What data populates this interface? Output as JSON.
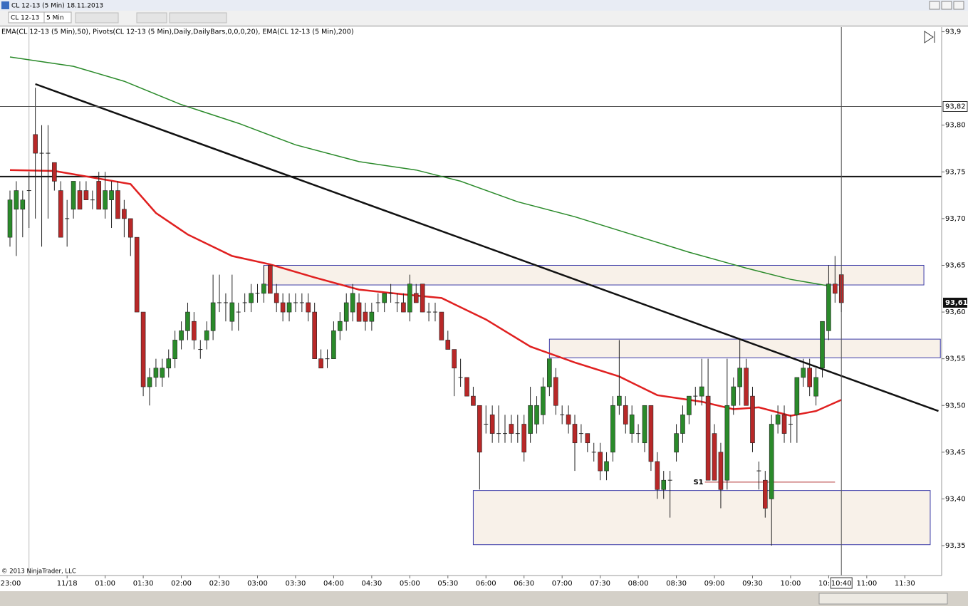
{
  "window": {
    "title": "CL 12-13 (5 Min)  18.11.2013",
    "instrument": "CL 12-13",
    "period": "5 Min"
  },
  "chart_data": {
    "type": "candlestick",
    "indicator_label": "EMA(CL 12-13 (5 Min),50),  Pivots(CL 12-13 (5 Min),Daily,DailyBars,0,0,0,20),  EMA(CL 12-13 (5 Min),200)",
    "copyright": "© 2013 NinjaTrader, LLC",
    "up_color": "#2a8a2a",
    "down_color": "#b82828",
    "xlim": [
      -1.57,
      146.8
    ],
    "ylim": [
      93.318,
      93.905
    ],
    "yticks": [
      {
        "value": 93.35,
        "label": "93,35"
      },
      {
        "value": 93.4,
        "label": "93,40"
      },
      {
        "value": 93.45,
        "label": "93,45"
      },
      {
        "value": 93.5,
        "label": "93,50"
      },
      {
        "value": 93.55,
        "label": "93,55"
      },
      {
        "value": 93.6,
        "label": "93,60"
      },
      {
        "value": 93.65,
        "label": "93,65"
      },
      {
        "value": 93.7,
        "label": "93,70"
      },
      {
        "value": 93.75,
        "label": "93,75"
      },
      {
        "value": 93.8,
        "label": "93,80"
      },
      {
        "value": 93.9,
        "label": "93,9"
      }
    ],
    "xticks": [
      {
        "value": -9,
        "label": "23:00"
      },
      {
        "value": 9,
        "label": "11/18"
      },
      {
        "value": 15,
        "label": "01:00"
      },
      {
        "value": 21,
        "label": "01:30"
      },
      {
        "value": 27,
        "label": "02:00"
      },
      {
        "value": 33,
        "label": "02:30"
      },
      {
        "value": 39,
        "label": "03:00"
      },
      {
        "value": 45,
        "label": "03:30"
      },
      {
        "value": 51,
        "label": "04:00"
      },
      {
        "value": 57,
        "label": "04:30"
      },
      {
        "value": 63,
        "label": "05:00"
      },
      {
        "value": 69,
        "label": "05:30"
      },
      {
        "value": 75,
        "label": "06:00"
      },
      {
        "value": 81,
        "label": "06:30"
      },
      {
        "value": 87,
        "label": "07:00"
      },
      {
        "value": 93,
        "label": "07:30"
      },
      {
        "value": 99,
        "label": "08:00"
      },
      {
        "value": 105,
        "label": "08:30"
      },
      {
        "value": 111,
        "label": "09:00"
      },
      {
        "value": 117,
        "label": "09:30"
      },
      {
        "value": 123,
        "label": "10:00"
      },
      {
        "value": 129,
        "label": "10:30"
      },
      {
        "value": 135,
        "label": "11:00"
      },
      {
        "value": 141,
        "label": "11:30"
      }
    ],
    "session_break": 3,
    "ohlc": [
      [
        93.68,
        93.73,
        93.67,
        93.72
      ],
      [
        93.71,
        93.74,
        93.66,
        93.73
      ],
      [
        93.71,
        93.73,
        93.68,
        93.72
      ],
      [
        93.73,
        93.75,
        93.69,
        93.73
      ],
      [
        93.79,
        93.84,
        93.7,
        93.77
      ],
      [
        93.77,
        93.8,
        93.67,
        93.77
      ],
      [
        93.77,
        93.8,
        93.7,
        93.77
      ],
      [
        93.76,
        93.76,
        93.73,
        93.74
      ],
      [
        93.73,
        93.74,
        93.68,
        93.68
      ],
      [
        93.7,
        93.72,
        93.67,
        93.7
      ],
      [
        93.71,
        93.74,
        93.7,
        93.74
      ],
      [
        93.73,
        93.74,
        93.71,
        93.71
      ],
      [
        93.73,
        93.74,
        93.72,
        93.72
      ],
      [
        93.72,
        93.73,
        93.71,
        93.72
      ],
      [
        93.74,
        93.75,
        93.71,
        93.71
      ],
      [
        93.71,
        93.75,
        93.7,
        93.73
      ],
      [
        93.72,
        93.74,
        93.69,
        93.73
      ],
      [
        93.73,
        93.74,
        93.7,
        93.7
      ],
      [
        93.71,
        93.72,
        93.68,
        93.7
      ],
      [
        93.7,
        93.7,
        93.66,
        93.68
      ],
      [
        93.68,
        93.68,
        93.6,
        93.6
      ],
      [
        93.6,
        93.6,
        93.51,
        93.52
      ],
      [
        93.52,
        93.54,
        93.5,
        93.53
      ],
      [
        93.53,
        93.55,
        93.52,
        93.54
      ],
      [
        93.53,
        93.55,
        93.52,
        93.54
      ],
      [
        93.54,
        93.56,
        93.53,
        93.55
      ],
      [
        93.55,
        93.58,
        93.54,
        93.57
      ],
      [
        93.57,
        93.59,
        93.56,
        93.58
      ],
      [
        93.58,
        93.61,
        93.57,
        93.6
      ],
      [
        93.59,
        93.6,
        93.56,
        93.57
      ],
      [
        93.56,
        93.57,
        93.55,
        93.56
      ],
      [
        93.57,
        93.59,
        93.56,
        93.58
      ],
      [
        93.58,
        93.64,
        93.57,
        93.61
      ],
      [
        93.61,
        93.64,
        93.6,
        93.61
      ],
      [
        93.61,
        93.62,
        93.59,
        93.61
      ],
      [
        93.59,
        93.64,
        93.58,
        93.61
      ],
      [
        93.6,
        93.61,
        93.58,
        93.6
      ],
      [
        93.61,
        93.62,
        93.6,
        93.61
      ],
      [
        93.61,
        93.63,
        93.6,
        93.62
      ],
      [
        93.62,
        93.63,
        93.61,
        93.62
      ],
      [
        93.62,
        93.65,
        93.61,
        93.63
      ],
      [
        93.65,
        93.65,
        93.62,
        93.62
      ],
      [
        93.62,
        93.63,
        93.6,
        93.61
      ],
      [
        93.61,
        93.62,
        93.59,
        93.6
      ],
      [
        93.6,
        93.62,
        93.59,
        93.61
      ],
      [
        93.61,
        93.62,
        93.6,
        93.61
      ],
      [
        93.61,
        93.62,
        93.6,
        93.61
      ],
      [
        93.61,
        93.62,
        93.59,
        93.6
      ],
      [
        93.6,
        93.61,
        93.55,
        93.55
      ],
      [
        93.55,
        93.56,
        93.54,
        93.54
      ],
      [
        93.55,
        93.56,
        93.54,
        93.55
      ],
      [
        93.55,
        93.59,
        93.55,
        93.58
      ],
      [
        93.58,
        93.6,
        93.57,
        93.59
      ],
      [
        93.59,
        93.62,
        93.58,
        93.61
      ],
      [
        93.6,
        93.63,
        93.59,
        93.62
      ],
      [
        93.61,
        93.62,
        93.59,
        93.59
      ],
      [
        93.6,
        93.61,
        93.58,
        93.59
      ],
      [
        93.59,
        93.61,
        93.58,
        93.6
      ],
      [
        93.61,
        93.62,
        93.6,
        93.61
      ],
      [
        93.61,
        93.62,
        93.6,
        93.62
      ],
      [
        93.62,
        93.63,
        93.61,
        93.62
      ],
      [
        93.61,
        93.62,
        93.6,
        93.61
      ],
      [
        93.61,
        93.62,
        93.6,
        93.6
      ],
      [
        93.6,
        93.64,
        93.59,
        93.63
      ],
      [
        93.62,
        93.63,
        93.61,
        93.61
      ],
      [
        93.63,
        93.63,
        93.6,
        93.6
      ],
      [
        93.6,
        93.61,
        93.59,
        93.6
      ],
      [
        93.6,
        93.61,
        93.59,
        93.6
      ],
      [
        93.6,
        93.6,
        93.57,
        93.57
      ],
      [
        93.57,
        93.58,
        93.56,
        93.56
      ],
      [
        93.56,
        93.56,
        93.51,
        93.54
      ],
      [
        93.53,
        93.55,
        93.52,
        93.53
      ],
      [
        93.53,
        93.53,
        93.51,
        93.51
      ],
      [
        93.51,
        93.52,
        93.5,
        93.5
      ],
      [
        93.5,
        93.5,
        93.41,
        93.45
      ],
      [
        93.48,
        93.5,
        93.47,
        93.48
      ],
      [
        93.49,
        93.5,
        93.46,
        93.47
      ],
      [
        93.47,
        93.5,
        93.46,
        93.47
      ],
      [
        93.47,
        93.49,
        93.46,
        93.47
      ],
      [
        93.48,
        93.49,
        93.46,
        93.47
      ],
      [
        93.47,
        93.49,
        93.46,
        93.47
      ],
      [
        93.48,
        93.49,
        93.44,
        93.45
      ],
      [
        93.47,
        93.52,
        93.46,
        93.5
      ],
      [
        93.48,
        93.51,
        93.47,
        93.5
      ],
      [
        93.49,
        93.53,
        93.48,
        93.52
      ],
      [
        93.52,
        93.55,
        93.51,
        93.55
      ],
      [
        93.53,
        93.54,
        93.49,
        93.5
      ],
      [
        93.49,
        93.5,
        93.48,
        93.49
      ],
      [
        93.49,
        93.5,
        93.47,
        93.48
      ],
      [
        93.48,
        93.49,
        93.43,
        93.46
      ],
      [
        93.47,
        93.48,
        93.46,
        93.47
      ],
      [
        93.47,
        93.47,
        93.45,
        93.46
      ],
      [
        93.45,
        93.46,
        93.44,
        93.45
      ],
      [
        93.45,
        93.46,
        93.42,
        93.43
      ],
      [
        93.43,
        93.45,
        93.42,
        93.44
      ],
      [
        93.45,
        93.51,
        93.44,
        93.5
      ],
      [
        93.5,
        93.57,
        93.49,
        93.51
      ],
      [
        93.5,
        93.51,
        93.47,
        93.48
      ],
      [
        93.47,
        93.5,
        93.46,
        93.49
      ],
      [
        93.47,
        93.48,
        93.46,
        93.47
      ],
      [
        93.46,
        93.5,
        93.45,
        93.5
      ],
      [
        93.5,
        93.5,
        93.43,
        93.44
      ],
      [
        93.44,
        93.45,
        93.4,
        93.41
      ],
      [
        93.41,
        93.43,
        93.4,
        93.42
      ],
      [
        93.42,
        93.43,
        93.38,
        93.42
      ],
      [
        93.45,
        93.48,
        93.44,
        93.47
      ],
      [
        93.47,
        93.5,
        93.46,
        93.49
      ],
      [
        93.49,
        93.51,
        93.48,
        93.51
      ],
      [
        93.51,
        93.52,
        93.5,
        93.51
      ],
      [
        93.51,
        93.55,
        93.5,
        93.52
      ],
      [
        93.51,
        93.55,
        93.42,
        93.42
      ],
      [
        93.47,
        93.48,
        93.42,
        93.42
      ],
      [
        93.45,
        93.46,
        93.39,
        93.41
      ],
      [
        93.42,
        93.55,
        93.41,
        93.5
      ],
      [
        93.5,
        93.53,
        93.49,
        93.52
      ],
      [
        93.52,
        93.57,
        93.5,
        93.54
      ],
      [
        93.54,
        93.55,
        93.5,
        93.5
      ],
      [
        93.51,
        93.52,
        93.45,
        93.46
      ],
      [
        93.43,
        93.44,
        93.41,
        93.43
      ],
      [
        93.42,
        93.43,
        93.38,
        93.39
      ],
      [
        93.4,
        93.49,
        93.35,
        93.48
      ],
      [
        93.48,
        93.5,
        93.47,
        93.49
      ],
      [
        93.49,
        93.5,
        93.46,
        93.47
      ],
      [
        93.48,
        93.49,
        93.46,
        93.48
      ],
      [
        93.49,
        93.53,
        93.46,
        93.53
      ],
      [
        93.53,
        93.55,
        93.52,
        93.54
      ],
      [
        93.54,
        93.55,
        93.51,
        93.52
      ],
      [
        93.51,
        93.54,
        93.5,
        93.53
      ],
      [
        93.54,
        93.59,
        93.53,
        93.59
      ],
      [
        93.58,
        93.65,
        93.57,
        93.63
      ],
      [
        93.63,
        93.66,
        93.61,
        93.62
      ],
      [
        93.64,
        93.64,
        93.6,
        93.61
      ]
    ],
    "lines": [
      {
        "color": "#e02020",
        "x": [
          0,
          7,
          19,
          23,
          28,
          35,
          41,
          48,
          55,
          62,
          68,
          75,
          82,
          89,
          96,
          102,
          109,
          114,
          118,
          123,
          127,
          131
        ],
        "values": [
          93.752,
          93.751,
          93.737,
          93.706,
          93.683,
          93.66,
          93.651,
          93.637,
          93.624,
          93.619,
          93.615,
          93.592,
          93.563,
          93.546,
          93.531,
          93.511,
          93.504,
          93.496,
          93.498,
          93.489,
          93.494,
          93.506
        ]
      },
      {
        "color": "#2a8a2a",
        "x": [
          0,
          10,
          18,
          27,
          36,
          45,
          55,
          64,
          71,
          80,
          89,
          98,
          107,
          116,
          123,
          129
        ],
        "values": [
          93.873,
          93.863,
          93.847,
          93.822,
          93.802,
          93.779,
          93.761,
          93.752,
          93.74,
          93.718,
          93.702,
          93.683,
          93.664,
          93.647,
          93.635,
          93.628
        ]
      }
    ],
    "trendline": {
      "x": [
        4,
        146.3
      ],
      "values": [
        93.844,
        93.494
      ]
    },
    "hline": 93.745,
    "zones": [
      {
        "x": [
          40,
          144
        ],
        "y": [
          93.629,
          93.65
        ]
      },
      {
        "x": [
          85,
          146.6
        ],
        "y": [
          93.551,
          93.571
        ]
      },
      {
        "x": [
          73,
          145
        ],
        "y": [
          93.351,
          93.409
        ]
      }
    ],
    "pivot": {
      "label": "S1",
      "value": 93.418,
      "x": [
        109.5,
        130
      ]
    },
    "crosshair": {
      "x": 131,
      "y": 93.82,
      "x_label": "10:40",
      "y_label": "93,82"
    },
    "last_price": {
      "value": 93.61,
      "label": "93,61"
    }
  }
}
